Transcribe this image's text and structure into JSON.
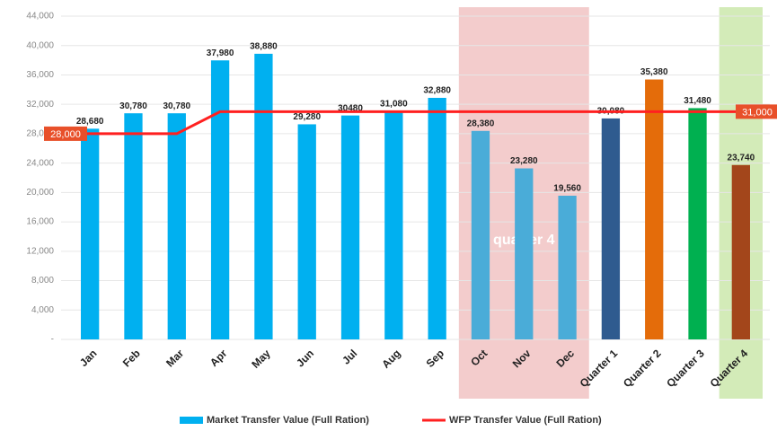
{
  "chart_data": {
    "type": "bar",
    "categories": [
      "Jan",
      "Feb",
      "Mar",
      "Apr",
      "May",
      "Jun",
      "Jul",
      "Aug",
      "Sep",
      "Oct",
      "Nov",
      "Dec",
      "Quarter 1",
      "Quarter 2",
      "Quarter 3",
      "Quarter 4"
    ],
    "series": [
      {
        "name": "Market Transfer Value (Full Ration)",
        "type": "bar",
        "color": "#00b0f0",
        "colors": [
          "#00b0f0",
          "#00b0f0",
          "#00b0f0",
          "#00b0f0",
          "#00b0f0",
          "#00b0f0",
          "#00b0f0",
          "#00b0f0",
          "#00b0f0",
          "#4aacd8",
          "#4aacd8",
          "#4aacd8",
          "#2f5b8f",
          "#e46c0a",
          "#00b050",
          "#a3461b"
        ],
        "values": [
          28680,
          30780,
          30780,
          37980,
          38880,
          29280,
          30480,
          31080,
          32880,
          28380,
          23280,
          19560,
          30080,
          35380,
          31480,
          23740
        ],
        "value_labels": [
          "28,680",
          "30,780",
          "30,780",
          "37,980",
          "38,880",
          "29,280",
          "30480",
          "31,080",
          "32,880",
          "28,380",
          "23,280",
          "19,560",
          "30,080",
          "35,380",
          "31,480",
          "23,740"
        ]
      },
      {
        "name": "WFP Transfer Value (Full Ration)",
        "type": "line",
        "color": "#ff2020",
        "values": [
          28000,
          28000,
          28000,
          31000,
          31000,
          31000,
          31000,
          31000,
          31000,
          31000,
          31000,
          31000,
          31000,
          31000,
          31000,
          31000
        ],
        "value_labels": [
          "28,000",
          null,
          null,
          null,
          null,
          null,
          null,
          null,
          null,
          null,
          null,
          null,
          null,
          null,
          null,
          "31,000"
        ]
      }
    ],
    "highlights": [
      {
        "from": 9,
        "to": 11,
        "color": "#f3cccc",
        "label": "quarter 4"
      },
      {
        "from": 15,
        "to": 15,
        "color": "#d3ebb8"
      }
    ],
    "ylim": [
      0,
      44000
    ],
    "yticks": [
      {
        "value": 0,
        "label": "-"
      },
      {
        "value": 4000,
        "label": "4,000"
      },
      {
        "value": 8000,
        "label": "8,000"
      },
      {
        "value": 12000,
        "label": "12,000"
      },
      {
        "value": 16000,
        "label": "16,000"
      },
      {
        "value": 20000,
        "label": "20,000"
      },
      {
        "value": 24000,
        "label": "24,000"
      },
      {
        "value": 28000,
        "label": "28,000"
      },
      {
        "value": 32000,
        "label": "32,000"
      },
      {
        "value": 36000,
        "label": "36,000"
      },
      {
        "value": 40000,
        "label": "40,000"
      },
      {
        "value": 44000,
        "label": "44,000"
      }
    ],
    "grid": true,
    "legend": "bottom"
  }
}
